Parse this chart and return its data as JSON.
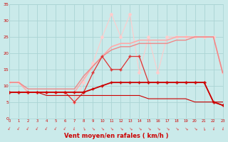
{
  "x": [
    0,
    1,
    2,
    3,
    4,
    5,
    6,
    7,
    8,
    9,
    10,
    11,
    12,
    13,
    14,
    15,
    16,
    17,
    18,
    19,
    20,
    21,
    22,
    23
  ],
  "line_light_peak": [
    11,
    11,
    8,
    8,
    8,
    8,
    8,
    5,
    11,
    17,
    25,
    32,
    25,
    32,
    14,
    25,
    14,
    25,
    25,
    25,
    25,
    25,
    25,
    14
  ],
  "line_light_smooth1": [
    11,
    11,
    8,
    8,
    8,
    8,
    8,
    8,
    12,
    16,
    19,
    22,
    23,
    23,
    24,
    24,
    24,
    24,
    25,
    25,
    25,
    25,
    25,
    14
  ],
  "line_light_smooth2": [
    11,
    11,
    9,
    9,
    9,
    9,
    9,
    9,
    13,
    16,
    19,
    21,
    22,
    22,
    23,
    23,
    23,
    23,
    24,
    24,
    25,
    25,
    25,
    14
  ],
  "line_mid_jagged": [
    8,
    8,
    8,
    8,
    8,
    8,
    8,
    5,
    8,
    14,
    19,
    15,
    15,
    19,
    19,
    11,
    11,
    11,
    11,
    11,
    11,
    11,
    5,
    4
  ],
  "line_dark_smooth": [
    8,
    8,
    8,
    8,
    8,
    8,
    8,
    8,
    8,
    9,
    10,
    11,
    11,
    11,
    11,
    11,
    11,
    11,
    11,
    11,
    11,
    11,
    5,
    4
  ],
  "line_dark_stepped": [
    8,
    8,
    8,
    8,
    7,
    7,
    7,
    7,
    7,
    7,
    7,
    7,
    7,
    7,
    7,
    6,
    6,
    6,
    6,
    6,
    5,
    5,
    5,
    5
  ],
  "xlim": [
    0,
    23
  ],
  "ylim": [
    0,
    35
  ],
  "yticks": [
    0,
    5,
    10,
    15,
    20,
    25,
    30,
    35
  ],
  "xticks": [
    0,
    1,
    2,
    3,
    4,
    5,
    6,
    7,
    8,
    9,
    10,
    11,
    12,
    13,
    14,
    15,
    16,
    17,
    18,
    19,
    20,
    21,
    22,
    23
  ],
  "xlabel": "Vent moyen/en rafales ( km/h )",
  "bg_color": "#caeaea",
  "grid_color": "#aad4d4",
  "color_dark_red": "#cc0000",
  "color_mid_red": "#dd3333",
  "color_light_pink1": "#ee8888",
  "color_light_pink2": "#ffaaaa",
  "color_light_pink3": "#ffcccc",
  "arrow_angles": [
    -30,
    -30,
    -30,
    -30,
    -30,
    -30,
    -30,
    -10,
    20,
    40,
    40,
    40,
    45,
    45,
    45,
    45,
    45,
    45,
    45,
    45,
    45,
    10,
    -10,
    -10
  ]
}
